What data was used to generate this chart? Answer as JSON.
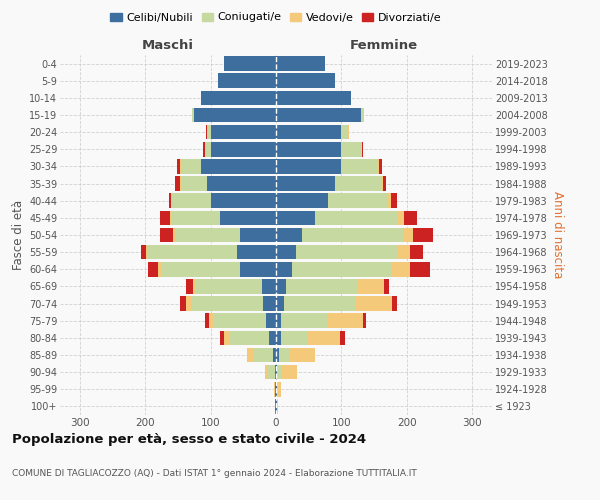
{
  "age_groups": [
    "100+",
    "95-99",
    "90-94",
    "85-89",
    "80-84",
    "75-79",
    "70-74",
    "65-69",
    "60-64",
    "55-59",
    "50-54",
    "45-49",
    "40-44",
    "35-39",
    "30-34",
    "25-29",
    "20-24",
    "15-19",
    "10-14",
    "5-9",
    "0-4"
  ],
  "birth_years": [
    "≤ 1923",
    "1924-1928",
    "1929-1933",
    "1934-1938",
    "1939-1943",
    "1944-1948",
    "1949-1953",
    "1954-1958",
    "1959-1963",
    "1964-1968",
    "1969-1973",
    "1974-1978",
    "1979-1983",
    "1984-1988",
    "1989-1993",
    "1994-1998",
    "1999-2003",
    "2004-2008",
    "2009-2013",
    "2014-2018",
    "2019-2023"
  ],
  "maschi": {
    "celibi": [
      1,
      1,
      2,
      5,
      10,
      15,
      20,
      22,
      55,
      60,
      55,
      85,
      100,
      105,
      115,
      100,
      100,
      125,
      115,
      88,
      80
    ],
    "coniugati": [
      1,
      1,
      10,
      30,
      60,
      80,
      110,
      100,
      120,
      135,
      100,
      75,
      60,
      40,
      30,
      8,
      5,
      3,
      0,
      0,
      0
    ],
    "vedovi": [
      0,
      1,
      5,
      10,
      10,
      8,
      8,
      5,
      5,
      3,
      2,
      2,
      1,
      1,
      1,
      1,
      1,
      0,
      0,
      0,
      0
    ],
    "divorziati": [
      0,
      0,
      0,
      0,
      5,
      5,
      8,
      10,
      15,
      8,
      20,
      15,
      2,
      8,
      5,
      2,
      1,
      0,
      0,
      0,
      0
    ]
  },
  "femmine": {
    "nubili": [
      1,
      1,
      2,
      5,
      8,
      8,
      12,
      15,
      25,
      30,
      40,
      60,
      80,
      90,
      100,
      100,
      100,
      130,
      115,
      90,
      75
    ],
    "coniugate": [
      1,
      1,
      5,
      15,
      40,
      70,
      110,
      110,
      150,
      155,
      155,
      125,
      90,
      70,
      55,
      30,
      10,
      5,
      0,
      0,
      0
    ],
    "vedove": [
      1,
      5,
      25,
      40,
      50,
      55,
      55,
      40,
      30,
      20,
      15,
      10,
      5,
      3,
      2,
      1,
      1,
      0,
      0,
      0,
      0
    ],
    "divorziate": [
      0,
      0,
      0,
      0,
      8,
      5,
      8,
      8,
      30,
      20,
      30,
      20,
      10,
      5,
      5,
      2,
      1,
      0,
      0,
      0,
      0
    ]
  },
  "colors": {
    "celibi": "#3d6e9e",
    "coniugati": "#c5d9a0",
    "vedovi": "#f5c97a",
    "divorziati": "#cc2222"
  },
  "legend_labels": [
    "Celibi/Nubili",
    "Coniugati/e",
    "Vedovi/e",
    "Divorziati/e"
  ],
  "title": "Popolazione per età, sesso e stato civile - 2024",
  "subtitle": "COMUNE DI TAGLIACOZZO (AQ) - Dati ISTAT 1° gennaio 2024 - Elaborazione TUTTITALIA.IT",
  "xlabel_left": "Maschi",
  "xlabel_right": "Femmine",
  "ylabel_left": "Fasce di età",
  "ylabel_right": "Anni di nascita",
  "xlim": 330,
  "bg_color": "#f9f9f9",
  "grid_color": "#cccccc"
}
